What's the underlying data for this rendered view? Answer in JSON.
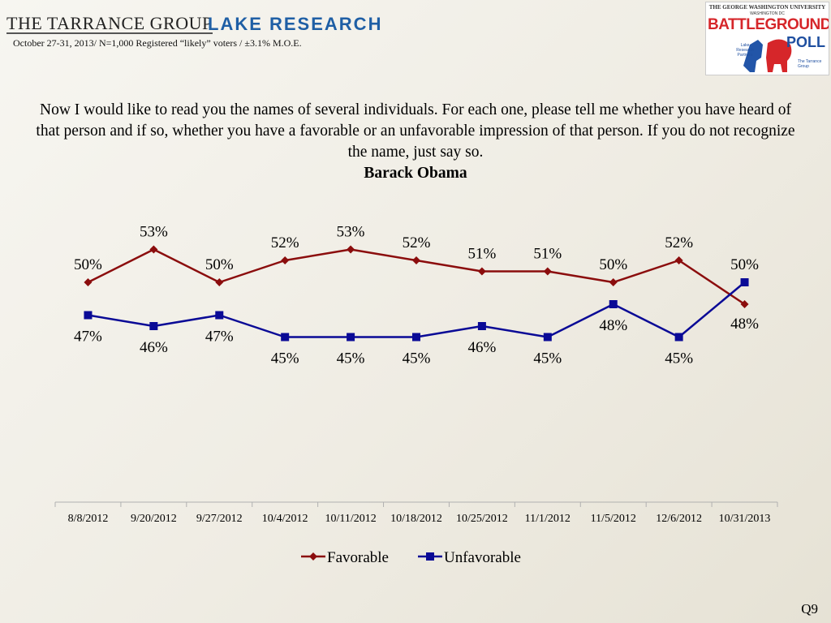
{
  "header": {
    "brand_left": "THE TARRANCE GROUP",
    "brand_right": "LAKE RESEARCH",
    "survey_info": "October 27-31, 2013/ N=1,000 Registered “likely” voters / ±3.1% M.O.E."
  },
  "logo": {
    "university": "THE GEORGE WASHINGTON UNIVERSITY",
    "location": "WASHINGTON DC",
    "name_top": "BATTLEGROUND",
    "name_bottom": "POLL",
    "partner_left": "Lake Research Partners",
    "partner_right": "The Tarrance Group"
  },
  "question": {
    "text": "Now I would like to read you the names of several individuals.  For each one, please tell me whether you have heard of that person and if so, whether you have a favorable or an unfavorable impression of that person.  If you do not recognize the name, just say so.",
    "subject": "Barack Obama"
  },
  "footer": {
    "question_number": "Q9"
  },
  "colors": {
    "favorable": "#8b0d0d",
    "unfavorable": "#0a0a96",
    "axis": "#b0b0b0"
  },
  "chart_data": {
    "type": "line",
    "title": "Barack Obama",
    "categories": [
      "8/8/2012",
      "9/20/2012",
      "9/27/2012",
      "10/4/2012",
      "10/11/2012",
      "10/18/2012",
      "10/25/2012",
      "11/1/2012",
      "11/5/2012",
      "12/6/2012",
      "10/31/2013"
    ],
    "series": [
      {
        "name": "Favorable",
        "marker": "diamond",
        "values": [
          50,
          53,
          50,
          52,
          53,
          52,
          51,
          51,
          50,
          52,
          48
        ]
      },
      {
        "name": "Unfavorable",
        "marker": "square",
        "values": [
          47,
          46,
          47,
          45,
          45,
          45,
          46,
          45,
          48,
          45,
          50
        ]
      }
    ],
    "value_suffix": "%",
    "ylim": [
      40,
      55
    ],
    "grid": false,
    "legend": "bottom",
    "xlabel": "",
    "ylabel": ""
  }
}
